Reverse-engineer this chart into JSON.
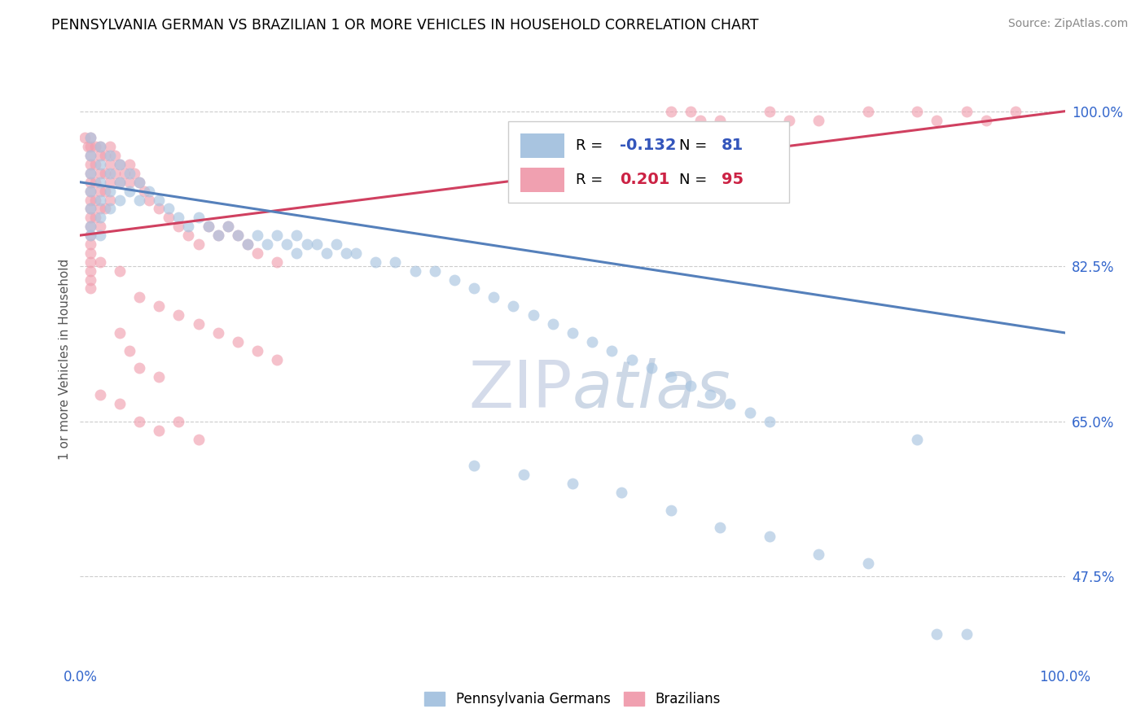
{
  "title": "PENNSYLVANIA GERMAN VS BRAZILIAN 1 OR MORE VEHICLES IN HOUSEHOLD CORRELATION CHART",
  "source": "Source: ZipAtlas.com",
  "ylabel": "1 or more Vehicles in Household",
  "ytick_values": [
    47.5,
    65.0,
    82.5,
    100.0
  ],
  "xlim": [
    0,
    100
  ],
  "ylim": [
    38,
    106
  ],
  "legend_entries": [
    "Pennsylvania Germans",
    "Brazilians"
  ],
  "R_blue": -0.132,
  "N_blue": 81,
  "R_pink": 0.201,
  "N_pink": 95,
  "blue_color": "#a8c4e0",
  "pink_color": "#f0a0b0",
  "blue_line_color": "#5580bb",
  "pink_line_color": "#d04060",
  "watermark_zip": "ZIP",
  "watermark_atlas": "atlas",
  "blue_scatter": [
    [
      1,
      97
    ],
    [
      1,
      95
    ],
    [
      1,
      93
    ],
    [
      1,
      91
    ],
    [
      1,
      89
    ],
    [
      1,
      87
    ],
    [
      1,
      86
    ],
    [
      2,
      96
    ],
    [
      2,
      94
    ],
    [
      2,
      92
    ],
    [
      2,
      90
    ],
    [
      2,
      88
    ],
    [
      2,
      86
    ],
    [
      3,
      95
    ],
    [
      3,
      93
    ],
    [
      3,
      91
    ],
    [
      3,
      89
    ],
    [
      4,
      94
    ],
    [
      4,
      92
    ],
    [
      4,
      90
    ],
    [
      5,
      93
    ],
    [
      5,
      91
    ],
    [
      6,
      92
    ],
    [
      6,
      90
    ],
    [
      7,
      91
    ],
    [
      8,
      90
    ],
    [
      9,
      89
    ],
    [
      10,
      88
    ],
    [
      11,
      87
    ],
    [
      12,
      88
    ],
    [
      13,
      87
    ],
    [
      14,
      86
    ],
    [
      15,
      87
    ],
    [
      16,
      86
    ],
    [
      17,
      85
    ],
    [
      18,
      86
    ],
    [
      19,
      85
    ],
    [
      20,
      86
    ],
    [
      21,
      85
    ],
    [
      22,
      86
    ],
    [
      22,
      84
    ],
    [
      23,
      85
    ],
    [
      24,
      85
    ],
    [
      25,
      84
    ],
    [
      26,
      85
    ],
    [
      27,
      84
    ],
    [
      28,
      84
    ],
    [
      30,
      83
    ],
    [
      32,
      83
    ],
    [
      34,
      82
    ],
    [
      36,
      82
    ],
    [
      38,
      81
    ],
    [
      40,
      80
    ],
    [
      42,
      79
    ],
    [
      44,
      78
    ],
    [
      46,
      77
    ],
    [
      48,
      76
    ],
    [
      50,
      75
    ],
    [
      52,
      74
    ],
    [
      54,
      73
    ],
    [
      56,
      72
    ],
    [
      58,
      71
    ],
    [
      60,
      70
    ],
    [
      62,
      69
    ],
    [
      64,
      68
    ],
    [
      66,
      67
    ],
    [
      68,
      66
    ],
    [
      70,
      65
    ],
    [
      40,
      60
    ],
    [
      45,
      59
    ],
    [
      50,
      58
    ],
    [
      55,
      57
    ],
    [
      60,
      55
    ],
    [
      65,
      53
    ],
    [
      70,
      52
    ],
    [
      75,
      50
    ],
    [
      80,
      49
    ],
    [
      85,
      63
    ],
    [
      87,
      41
    ],
    [
      90,
      41
    ]
  ],
  "pink_scatter": [
    [
      0.5,
      97
    ],
    [
      0.8,
      96
    ],
    [
      1,
      97
    ],
    [
      1,
      96
    ],
    [
      1,
      95
    ],
    [
      1,
      94
    ],
    [
      1,
      93
    ],
    [
      1,
      92
    ],
    [
      1,
      91
    ],
    [
      1,
      90
    ],
    [
      1,
      89
    ],
    [
      1,
      88
    ],
    [
      1,
      87
    ],
    [
      1,
      86
    ],
    [
      1,
      85
    ],
    [
      1,
      84
    ],
    [
      1,
      83
    ],
    [
      1,
      82
    ],
    [
      1,
      81
    ],
    [
      1,
      80
    ],
    [
      1.5,
      96
    ],
    [
      1.5,
      94
    ],
    [
      1.5,
      92
    ],
    [
      1.5,
      90
    ],
    [
      1.5,
      88
    ],
    [
      2,
      96
    ],
    [
      2,
      95
    ],
    [
      2,
      93
    ],
    [
      2,
      91
    ],
    [
      2,
      89
    ],
    [
      2,
      87
    ],
    [
      2.5,
      95
    ],
    [
      2.5,
      93
    ],
    [
      2.5,
      91
    ],
    [
      2.5,
      89
    ],
    [
      3,
      96
    ],
    [
      3,
      94
    ],
    [
      3,
      92
    ],
    [
      3,
      90
    ],
    [
      3.5,
      95
    ],
    [
      3.5,
      93
    ],
    [
      4,
      94
    ],
    [
      4,
      92
    ],
    [
      4.5,
      93
    ],
    [
      5,
      94
    ],
    [
      5,
      92
    ],
    [
      5.5,
      93
    ],
    [
      6,
      92
    ],
    [
      6.5,
      91
    ],
    [
      7,
      90
    ],
    [
      8,
      89
    ],
    [
      9,
      88
    ],
    [
      10,
      87
    ],
    [
      11,
      86
    ],
    [
      12,
      85
    ],
    [
      13,
      87
    ],
    [
      14,
      86
    ],
    [
      15,
      87
    ],
    [
      16,
      86
    ],
    [
      17,
      85
    ],
    [
      18,
      84
    ],
    [
      20,
      83
    ],
    [
      6,
      79
    ],
    [
      8,
      78
    ],
    [
      10,
      77
    ],
    [
      12,
      76
    ],
    [
      14,
      75
    ],
    [
      16,
      74
    ],
    [
      18,
      73
    ],
    [
      20,
      72
    ],
    [
      4,
      75
    ],
    [
      5,
      73
    ],
    [
      6,
      71
    ],
    [
      8,
      70
    ],
    [
      2,
      68
    ],
    [
      4,
      67
    ],
    [
      6,
      65
    ],
    [
      8,
      64
    ],
    [
      10,
      65
    ],
    [
      12,
      63
    ],
    [
      60,
      100
    ],
    [
      62,
      100
    ],
    [
      63,
      99
    ],
    [
      65,
      99
    ],
    [
      70,
      100
    ],
    [
      72,
      99
    ],
    [
      85,
      100
    ],
    [
      87,
      99
    ],
    [
      90,
      100
    ],
    [
      92,
      99
    ],
    [
      95,
      100
    ],
    [
      75,
      99
    ],
    [
      80,
      100
    ],
    [
      2,
      83
    ],
    [
      4,
      82
    ]
  ]
}
